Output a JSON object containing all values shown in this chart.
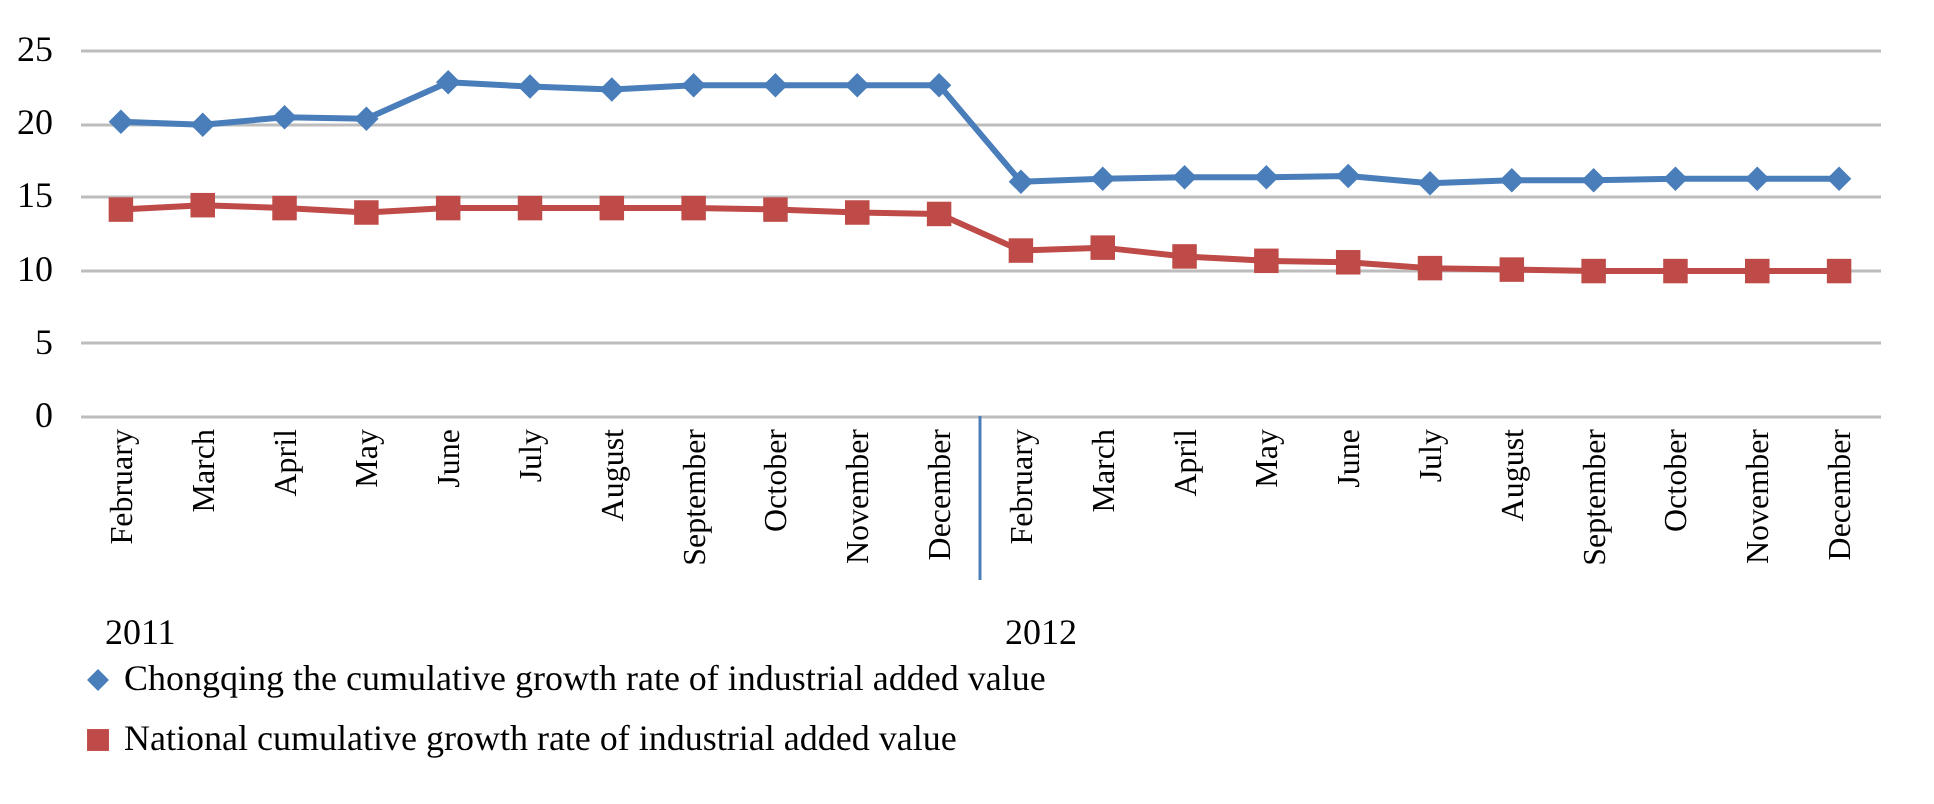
{
  "chart_data": {
    "type": "line",
    "categories": [
      "February",
      "March",
      "April",
      "May",
      "June",
      "July",
      "August",
      "September",
      "October",
      "November",
      "December",
      "February",
      "March",
      "April",
      "May",
      "June",
      "July",
      "August",
      "September",
      "October",
      "November",
      "December"
    ],
    "series": [
      {
        "name": "Chongqing the cumulative growth rate of industrial added value",
        "color": "#4a7ebb",
        "marker": "diamond",
        "values": [
          20.1,
          19.9,
          20.4,
          20.3,
          22.8,
          22.5,
          22.3,
          22.6,
          22.6,
          22.6,
          22.6,
          16.0,
          16.2,
          16.3,
          16.3,
          16.4,
          15.9,
          16.1,
          16.1,
          16.2,
          16.2,
          16.2
        ]
      },
      {
        "name": "National cumulative growth rate of industrial added value",
        "color": "#be4b48",
        "marker": "square",
        "values": [
          14.1,
          14.4,
          14.2,
          13.9,
          14.2,
          14.2,
          14.2,
          14.2,
          14.1,
          13.9,
          13.8,
          11.3,
          11.5,
          10.9,
          10.6,
          10.5,
          10.1,
          10.0,
          9.9,
          9.9,
          9.9,
          9.9
        ]
      }
    ],
    "annotations": [
      "2011",
      "2012"
    ],
    "ylim": [
      0,
      25
    ],
    "yticks": [
      0,
      5,
      10,
      15,
      20,
      25
    ],
    "grid": "y",
    "legend": "bottom"
  }
}
